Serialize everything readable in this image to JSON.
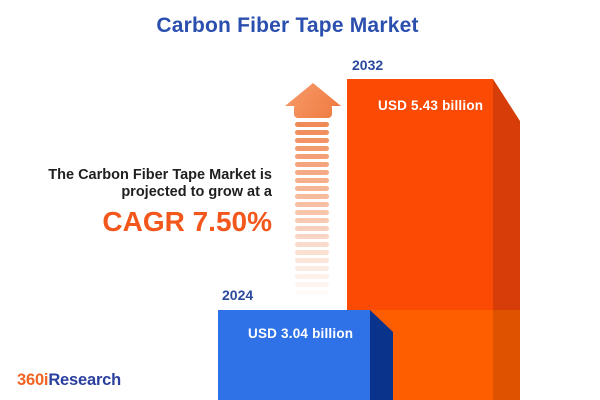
{
  "title": "Carbon Fiber Tape Market",
  "description": {
    "line1": "The Carbon Fiber Tape Market is",
    "line2": "projected to grow at a",
    "cagr": "CAGR 7.50%"
  },
  "chart_data": {
    "type": "bar",
    "title": "Carbon Fiber Tape Market",
    "categories": [
      "2024",
      "2032"
    ],
    "values": [
      3.04,
      5.43
    ],
    "value_unit": "USD billion",
    "bar_labels": [
      "USD 3.04 billion",
      "USD 5.43 billion"
    ],
    "cagr_percent": 7.5,
    "legend": "none",
    "grid": "off",
    "colors": {
      "title_blue": "#2b4fae",
      "cagr_orange": "#f3571c",
      "arrow_orange": "#ef8048",
      "bar_2024_front": "#2f72e8",
      "bar_2024_side": "#0a338c",
      "bar_2032_front_upper": "#fb4a03",
      "bar_2032_front_lower": "#ff5e00",
      "bar_2032_side_upper": "#d63d08",
      "bar_2032_side_lower": "#dd5300"
    }
  },
  "logo": {
    "part1": "360i",
    "part2": "Research"
  }
}
